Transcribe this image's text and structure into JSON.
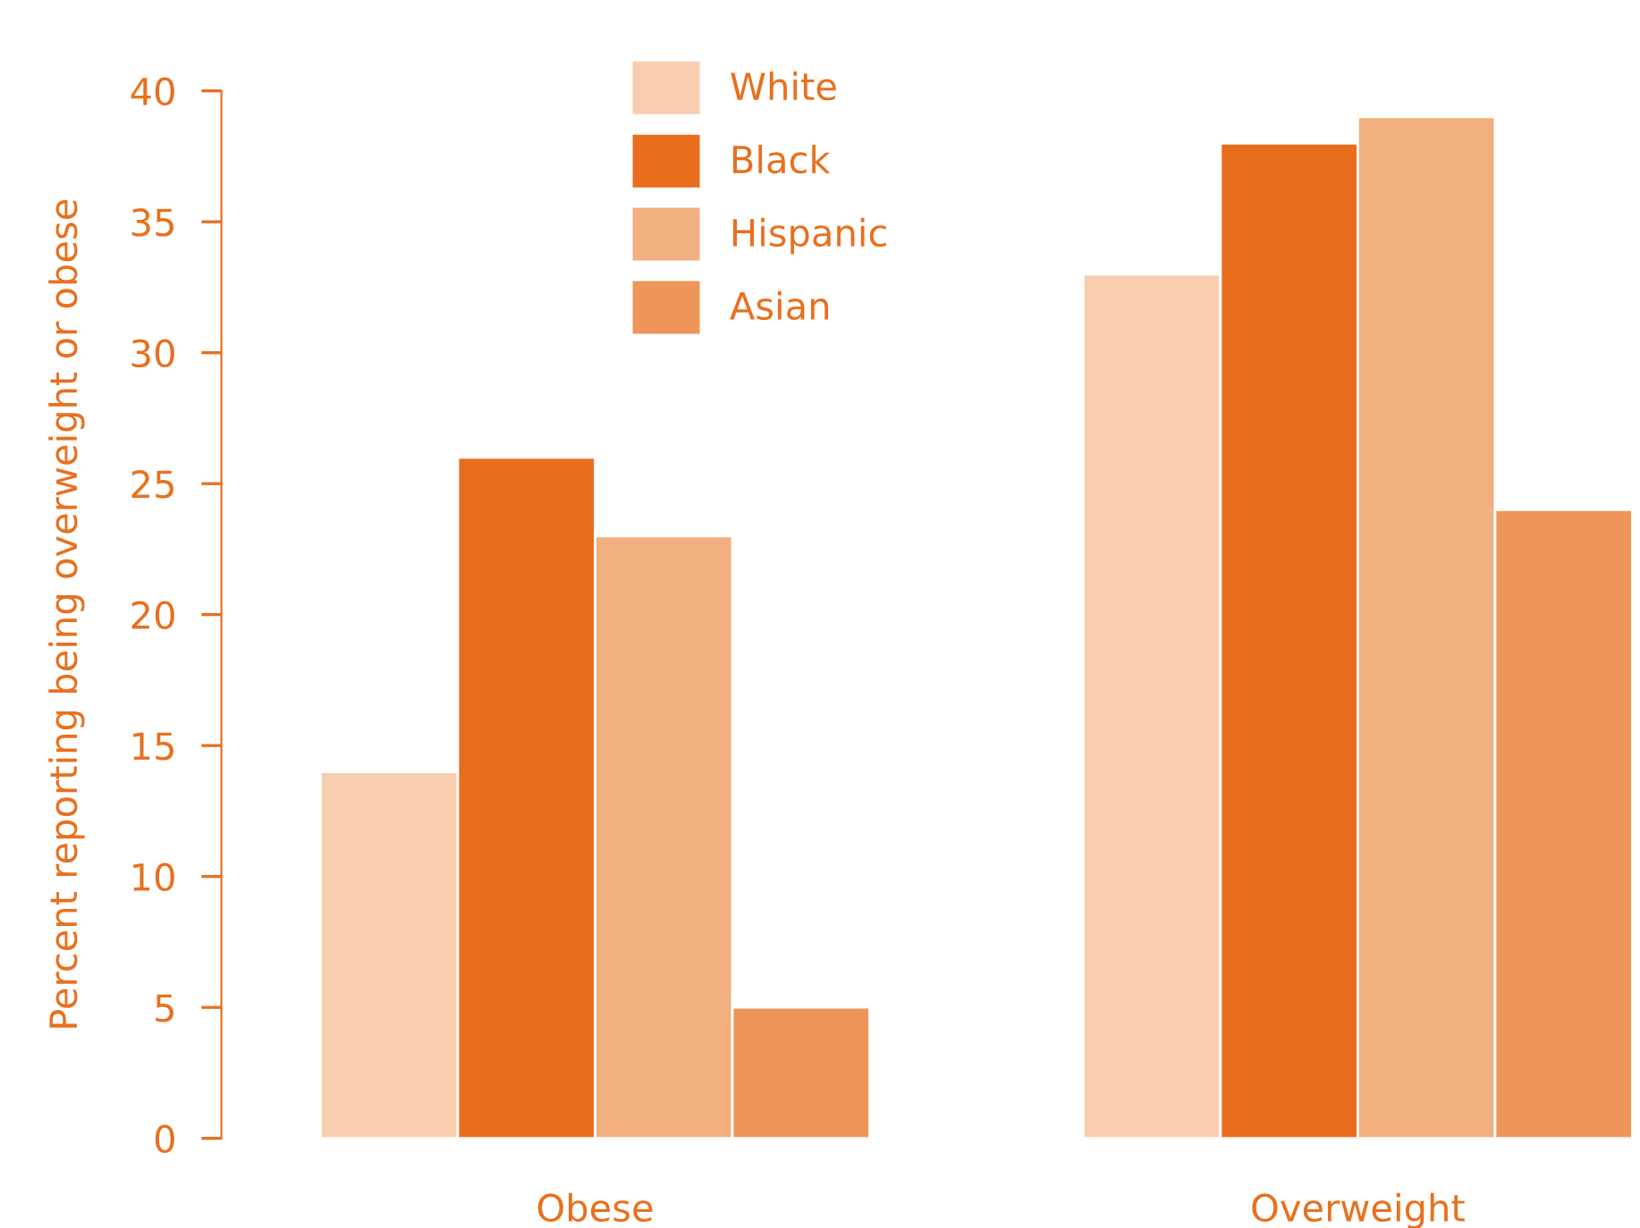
{
  "chart_data": {
    "type": "bar",
    "ylabel": "Percent reporting being overweight or obese",
    "categories": [
      "Obese",
      "Overweight"
    ],
    "series": [
      {
        "name": "White",
        "color": "#f8cdb0",
        "values": [
          14,
          33
        ]
      },
      {
        "name": "Black",
        "color": "#e86e1e",
        "values": [
          26,
          38
        ]
      },
      {
        "name": "Hispanic",
        "color": "#f2af80",
        "values": [
          23,
          39
        ]
      },
      {
        "name": "Asian",
        "color": "#ee965a",
        "values": [
          5,
          24
        ]
      }
    ],
    "ylim": [
      0,
      40
    ],
    "yticks": [
      0,
      5,
      10,
      15,
      20,
      25,
      30,
      35,
      40
    ],
    "grid": false,
    "legend": "top"
  }
}
